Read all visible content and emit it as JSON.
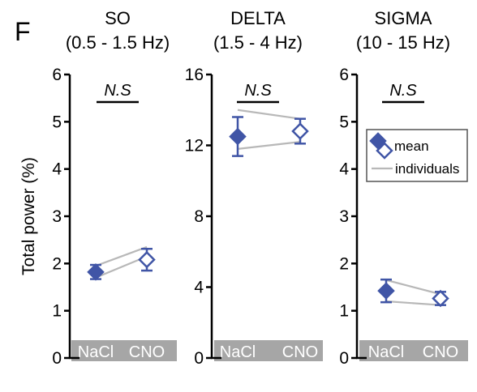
{
  "figure": {
    "panel_letter": "F",
    "ylabel": "Total power (%)"
  },
  "colors": {
    "mean": "#4055a6",
    "individuals": "#b8b8b8",
    "category_band": "#a6a6a6"
  },
  "legend": {
    "entries": [
      "mean",
      "individuals"
    ],
    "placement": "right of SIGMA panel"
  },
  "chart_data": [
    {
      "type": "line",
      "title": [
        "SO",
        "(0.5 - 1.5 Hz)"
      ],
      "significance": "N.S",
      "categories": [
        "NaCl",
        "CNO"
      ],
      "ylim": [
        0,
        6
      ],
      "yticks": [
        0,
        1,
        2,
        3,
        4,
        5,
        6
      ],
      "mean": {
        "values": [
          1.82,
          2.08
        ],
        "error": [
          0.15,
          0.23
        ]
      },
      "individuals": [
        [
          1.95,
          2.35
        ],
        [
          1.7,
          2.15
        ]
      ]
    },
    {
      "type": "line",
      "title": [
        "DELTA",
        "(1.5 - 4 Hz)"
      ],
      "significance": "N.S",
      "categories": [
        "NaCl",
        "CNO"
      ],
      "ylim": [
        0,
        16
      ],
      "yticks": [
        0,
        4,
        8,
        12,
        16
      ],
      "mean": {
        "values": [
          12.5,
          12.8
        ],
        "error": [
          1.1,
          0.7
        ]
      },
      "individuals": [
        [
          14.0,
          13.5
        ],
        [
          11.8,
          12.2
        ]
      ]
    },
    {
      "type": "line",
      "title": [
        "SIGMA",
        "(10 - 15 Hz)"
      ],
      "significance": "N.S",
      "categories": [
        "NaCl",
        "CNO"
      ],
      "ylim": [
        0,
        6
      ],
      "yticks": [
        0,
        1,
        2,
        3,
        4,
        5,
        6
      ],
      "mean": {
        "values": [
          1.42,
          1.26
        ],
        "error": [
          0.24,
          0.14
        ]
      },
      "individuals": [
        [
          1.65,
          1.35
        ],
        [
          1.2,
          1.12
        ]
      ]
    }
  ]
}
